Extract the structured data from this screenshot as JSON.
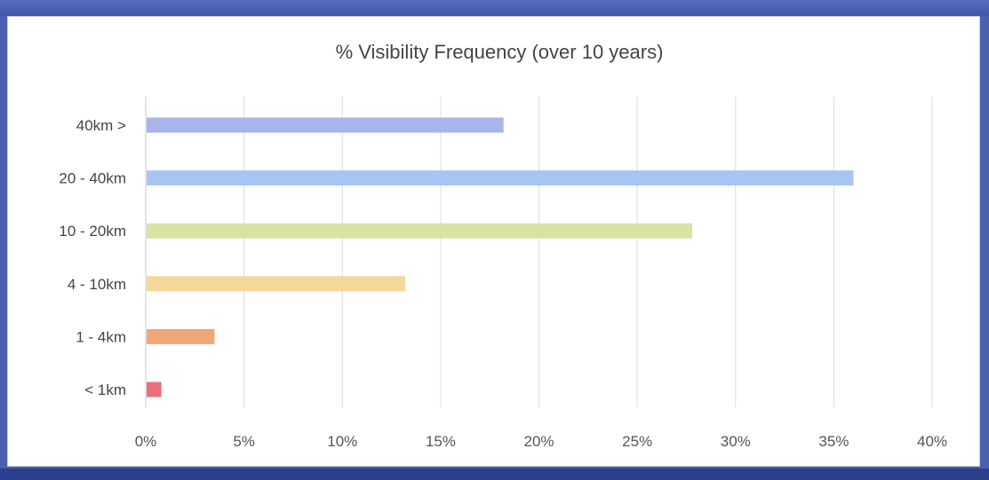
{
  "chart_data": {
    "type": "bar",
    "orientation": "horizontal",
    "title": "% Visibility Frequency (over 10 years)",
    "categories": [
      "40km  >",
      "20 - 40km",
      "10 - 20km",
      "4 - 10km",
      "1 - 4km",
      "< 1km"
    ],
    "values": [
      18.2,
      36.0,
      27.8,
      13.2,
      3.5,
      0.8
    ],
    "colors": [
      "#a9b5ea",
      "#a7c5f2",
      "#d7e4a4",
      "#f5d79a",
      "#f1a67a",
      "#e9707c"
    ],
    "xlim": [
      0,
      40
    ],
    "xticks": [
      "0%",
      "5%",
      "10%",
      "15%",
      "20%",
      "25%",
      "30%",
      "35%",
      "40%"
    ],
    "grid": true,
    "legend": "none"
  }
}
